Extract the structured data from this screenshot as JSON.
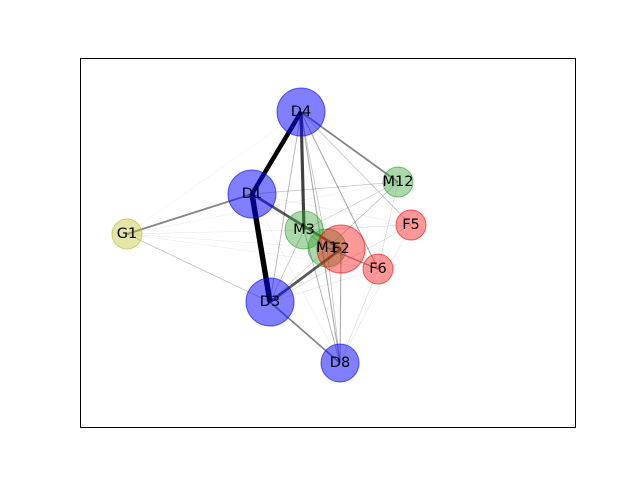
{
  "graph": {
    "nodes": [
      {
        "id": "D4",
        "label": "D4",
        "color": "#0000ff",
        "size": 3
      },
      {
        "id": "D1",
        "label": "D1",
        "color": "#0000ff",
        "size": 3
      },
      {
        "id": "D3",
        "label": "D3",
        "color": "#0000ff",
        "size": 3
      },
      {
        "id": "D8",
        "label": "D8",
        "color": "#0000ff",
        "size": 2
      },
      {
        "id": "M12",
        "label": "M12",
        "color": "#2ca02c",
        "size": 1
      },
      {
        "id": "M3",
        "label": "M3",
        "color": "#2ca02c",
        "size": 2
      },
      {
        "id": "M1",
        "label": "M1",
        "color": "#2ca02c",
        "size": 2
      },
      {
        "id": "F2",
        "label": "F2",
        "color": "#ff0000",
        "size": 3
      },
      {
        "id": "F5",
        "label": "F5",
        "color": "#ff0000",
        "size": 1
      },
      {
        "id": "F6",
        "label": "F6",
        "color": "#ff0000",
        "size": 1
      },
      {
        "id": "G1",
        "label": "G1",
        "color": "#bcbd22",
        "size": 1
      }
    ],
    "edges": [
      {
        "source": "D1",
        "target": "D3",
        "weight": 6
      },
      {
        "source": "D1",
        "target": "D4",
        "weight": 5
      },
      {
        "source": "D4",
        "target": "M3",
        "weight": 3.5
      },
      {
        "source": "D1",
        "target": "F2",
        "weight": 3
      },
      {
        "source": "D3",
        "target": "F2",
        "weight": 3
      },
      {
        "source": "D1",
        "target": "G1",
        "weight": 2
      },
      {
        "source": "D4",
        "target": "M12",
        "weight": 2
      },
      {
        "source": "D3",
        "target": "D8",
        "weight": 2
      },
      {
        "source": "M1",
        "target": "F6",
        "weight": 1.5
      },
      {
        "source": "D4",
        "target": "F6",
        "weight": 1.2
      },
      {
        "source": "D4",
        "target": "D8",
        "weight": 1.2
      },
      {
        "source": "D4",
        "target": "D3",
        "weight": 1
      },
      {
        "source": "D4",
        "target": "F5",
        "weight": 0.8
      },
      {
        "source": "D4",
        "target": "M1",
        "weight": 0.8
      },
      {
        "source": "D1",
        "target": "M12",
        "weight": 0.8
      },
      {
        "source": "D3",
        "target": "M12",
        "weight": 0.6
      },
      {
        "source": "D3",
        "target": "M3",
        "weight": 0.8
      },
      {
        "source": "F2",
        "target": "D8",
        "weight": 1.2
      },
      {
        "source": "M3",
        "target": "D8",
        "weight": 1
      },
      {
        "source": "M1",
        "target": "D8",
        "weight": 0.8
      },
      {
        "source": "G1",
        "target": "D3",
        "weight": 0.8
      },
      {
        "source": "G1",
        "target": "F2",
        "weight": 0.3
      },
      {
        "source": "G1",
        "target": "M3",
        "weight": 0.3
      },
      {
        "source": "G1",
        "target": "F6",
        "weight": 0.2
      },
      {
        "source": "G1",
        "target": "M12",
        "weight": 0.2
      },
      {
        "source": "F5",
        "target": "D8",
        "weight": 0.4
      },
      {
        "source": "F5",
        "target": "D3",
        "weight": 0.4
      },
      {
        "source": "F5",
        "target": "M3",
        "weight": 0.5
      },
      {
        "source": "F6",
        "target": "D8",
        "weight": 0.5
      },
      {
        "source": "F6",
        "target": "D3",
        "weight": 0.4
      },
      {
        "source": "M12",
        "target": "M3",
        "weight": 0.6
      },
      {
        "source": "M12",
        "target": "M1",
        "weight": 0.5
      },
      {
        "source": "M12",
        "target": "F6",
        "weight": 0.5
      },
      {
        "source": "M1",
        "target": "F2",
        "weight": 1
      },
      {
        "source": "M3",
        "target": "M1",
        "weight": 1
      },
      {
        "source": "D1",
        "target": "D8",
        "weight": 0.3
      },
      {
        "source": "D1",
        "target": "F5",
        "weight": 0.3
      },
      {
        "source": "D3",
        "target": "F5",
        "weight": 0.3
      },
      {
        "source": "D4",
        "target": "G1",
        "weight": 0.1
      }
    ]
  }
}
